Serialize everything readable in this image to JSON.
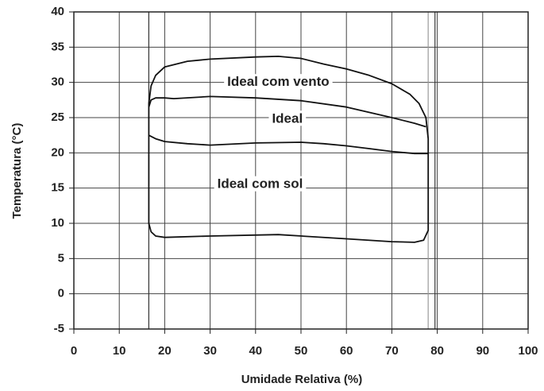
{
  "chart_data": {
    "type": "line",
    "xlabel": "Umidade Relativa (%)",
    "ylabel": "Temperatura (°C)",
    "xlim": [
      0,
      100
    ],
    "xticks": [
      0,
      10,
      20,
      30,
      40,
      50,
      60,
      70,
      80,
      90,
      100
    ],
    "ylim": [
      -5,
      40
    ],
    "yticks": [
      -5,
      0,
      5,
      10,
      15,
      20,
      25,
      30,
      35,
      40
    ],
    "grid": true,
    "reference_lines_x": [
      16.5,
      78,
      79.5
    ],
    "series": [
      {
        "color": "#111",
        "x": [
          16.5,
          17,
          18,
          20,
          25,
          30,
          40,
          45,
          50,
          55,
          60,
          65,
          70,
          74,
          76,
          77.5,
          78,
          78,
          78,
          77,
          75,
          70,
          60,
          45,
          30,
          20,
          18,
          17,
          16.5,
          16.5
        ],
        "values": [
          27,
          29.5,
          31,
          32.2,
          33,
          33.3,
          33.6,
          33.7,
          33.4,
          32.6,
          31.9,
          31,
          29.8,
          28.3,
          27,
          25,
          22,
          15,
          9,
          7.6,
          7.3,
          7.4,
          7.8,
          8.4,
          8.2,
          8,
          8.2,
          8.8,
          10,
          27
        ]
      },
      {
        "color": "#111",
        "x": [
          16.5,
          17,
          18,
          20,
          22,
          30,
          40,
          50,
          60,
          70,
          75,
          77.5
        ],
        "values": [
          26.5,
          27.5,
          27.8,
          27.8,
          27.7,
          28,
          27.8,
          27.4,
          26.5,
          25,
          24.2,
          23.7
        ]
      },
      {
        "color": "#111",
        "x": [
          16.5,
          18,
          20,
          25,
          30,
          40,
          50,
          55,
          60,
          65,
          70,
          75,
          78
        ],
        "values": [
          22.5,
          22,
          21.6,
          21.3,
          21.1,
          21.4,
          21.5,
          21.3,
          21,
          20.6,
          20.2,
          19.9,
          19.9
        ]
      }
    ],
    "annotations": [
      {
        "text": "Ideal com vento",
        "x": 45,
        "y": 30
      },
      {
        "text": "Ideal",
        "x": 47,
        "y": 24.8
      },
      {
        "text": "Ideal com sol",
        "x": 41,
        "y": 15.5
      }
    ]
  }
}
